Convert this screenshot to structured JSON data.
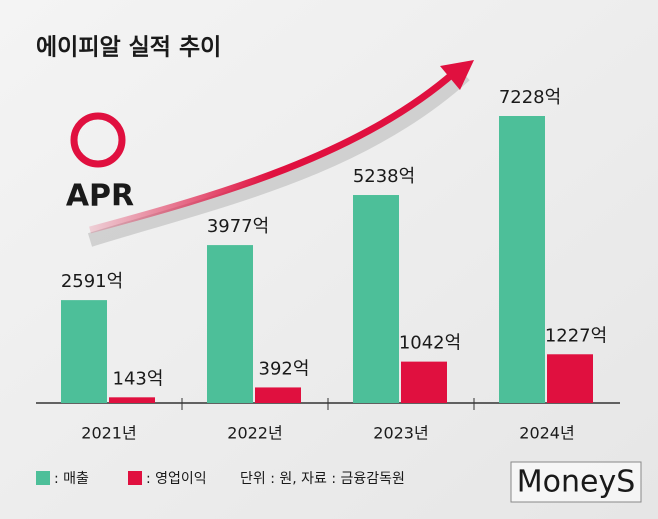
{
  "chart_data": {
    "type": "bar",
    "title": "에이피알 실적 추이",
    "categories": [
      "2021년",
      "2022년",
      "2023년",
      "2024년"
    ],
    "series": [
      {
        "name": ": 매출",
        "color": "#4dbf99",
        "values": [
          2591,
          3977,
          5238,
          7228
        ],
        "value_labels": [
          "2591억",
          "3977억",
          "5238억",
          "7228억"
        ]
      },
      {
        "name": ": 영업이익",
        "color": "#e0103f",
        "values": [
          143,
          392,
          1042,
          1227
        ],
        "value_labels": [
          "143억",
          "392억",
          "1042억",
          "1227억"
        ]
      }
    ],
    "source": "단위 : 원, 자료 : 금융감독원",
    "logo": "APR",
    "watermark": "MoneyS"
  }
}
